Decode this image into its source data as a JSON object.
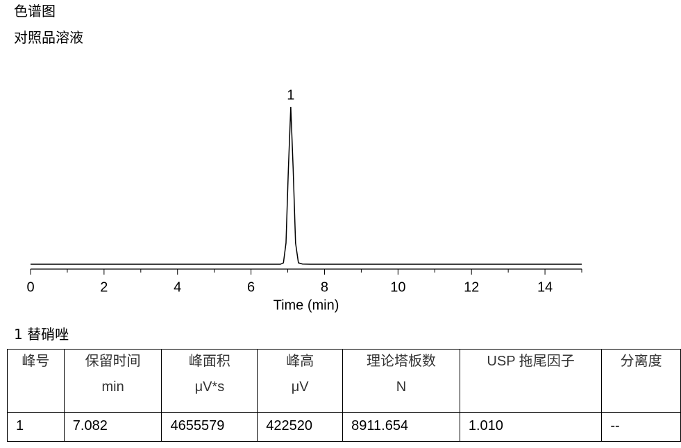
{
  "heading": "色谱图",
  "subheading": "对照品溶液",
  "chart_data": {
    "type": "line",
    "xlabel": "Time (min)",
    "xlim": [
      0,
      15
    ],
    "xticks": [
      0,
      2,
      4,
      6,
      8,
      10,
      12,
      14
    ],
    "minor_xticks": [
      1,
      3,
      5,
      7,
      9,
      11,
      13,
      15
    ],
    "ylim": [
      0,
      470000
    ],
    "annotations": [
      {
        "text": "1",
        "x": 7.082
      }
    ],
    "series": [
      {
        "color": "#000000",
        "x": [
          0,
          1,
          2,
          3,
          4,
          5,
          6,
          6.5,
          6.8,
          6.882,
          6.952,
          7.017,
          7.082,
          7.147,
          7.212,
          7.29,
          7.4,
          7.6,
          8,
          9,
          10,
          11,
          12,
          13,
          14,
          15
        ],
        "values": [
          0,
          0,
          0,
          0,
          0,
          0,
          0,
          0,
          0,
          3700,
          57000,
          256000,
          422520,
          256000,
          57000,
          3700,
          500,
          0,
          0,
          0,
          0,
          0,
          0,
          0,
          0,
          0
        ]
      }
    ]
  },
  "peak_caption": "1  替硝唑",
  "table": {
    "columns": [
      {
        "name": "峰号"
      },
      {
        "name": "保留时间",
        "unit": "min"
      },
      {
        "name": "峰面积",
        "unit": "μV*s"
      },
      {
        "name": "峰高",
        "unit": "μV"
      },
      {
        "name": "理论塔板数",
        "unit": "N"
      },
      {
        "name": "USP 拖尾因子"
      },
      {
        "name": "分离度"
      }
    ],
    "rows": [
      [
        "1",
        "7.082",
        "4655579",
        "422520",
        "8911.654",
        "1.010",
        "--"
      ]
    ]
  }
}
